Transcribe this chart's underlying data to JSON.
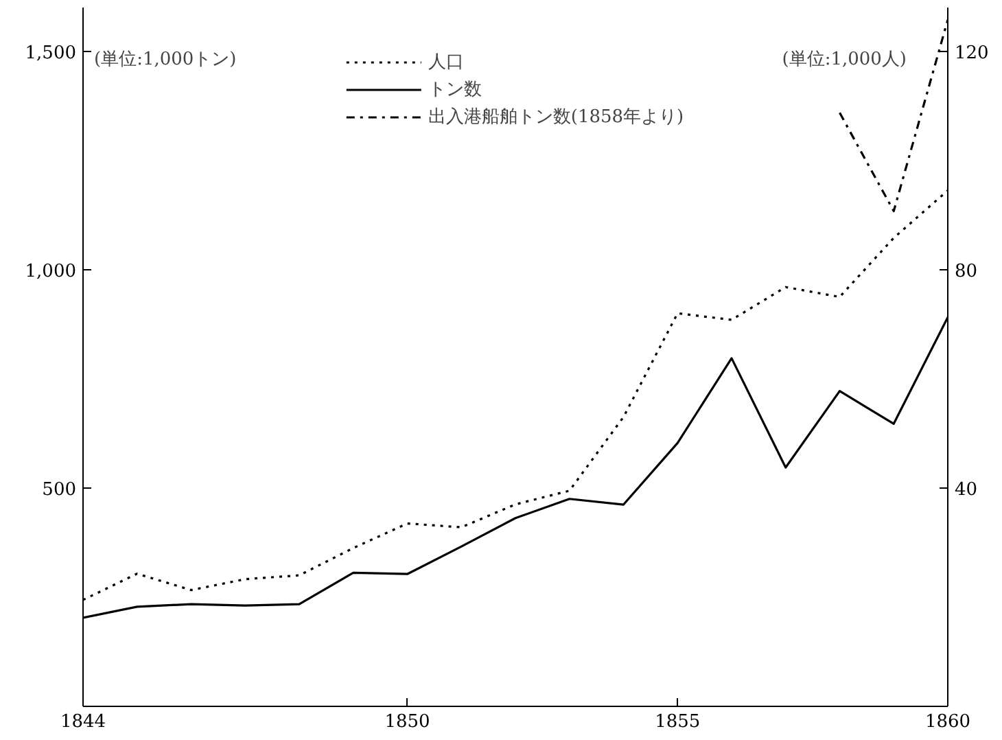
{
  "chart_data": {
    "type": "line",
    "x": [
      1844,
      1845,
      1846,
      1847,
      1848,
      1849,
      1850,
      1851,
      1852,
      1853,
      1854,
      1855,
      1856,
      1857,
      1858,
      1859,
      1860
    ],
    "series": [
      {
        "name": "人口",
        "color": "#000000",
        "line_style": "dotted",
        "axis": "y2",
        "values": [
          19.5,
          24.3,
          21.3,
          23.3,
          24,
          29,
          33.5,
          32.8,
          37,
          39.5,
          53,
          72,
          70.8,
          76.8,
          75,
          85.8,
          94.5
        ]
      },
      {
        "name": "トン数",
        "color": "#000000",
        "line_style": "solid",
        "values": [
          203,
          228,
          234,
          231,
          234,
          306,
          303,
          366,
          431,
          475,
          462,
          603,
          797,
          547,
          722,
          647,
          891
        ]
      },
      {
        "name": "出入港船舶トン数(1858年より)",
        "color": "#000000",
        "line_style": "dashdot",
        "values": [
          null,
          null,
          null,
          null,
          null,
          null,
          null,
          null,
          null,
          null,
          null,
          null,
          null,
          null,
          1359,
          1134,
          1572
        ]
      }
    ],
    "xlim": [
      1844,
      1860
    ],
    "xticks": [
      1844,
      1850,
      1855,
      1860
    ],
    "ylim": [
      0,
      1600
    ],
    "yticks": [
      500,
      {
        "value": 1000,
        "label": "1,000"
      },
      {
        "value": 1500,
        "label": "1,500"
      }
    ],
    "y2lim": [
      0,
      128
    ],
    "y2ticks": [
      40,
      80,
      120
    ],
    "annotations": [
      "(単位:1,000トン)",
      "(単位:1,000人)"
    ],
    "grid": false,
    "legend": "top",
    "marker": "none"
  }
}
